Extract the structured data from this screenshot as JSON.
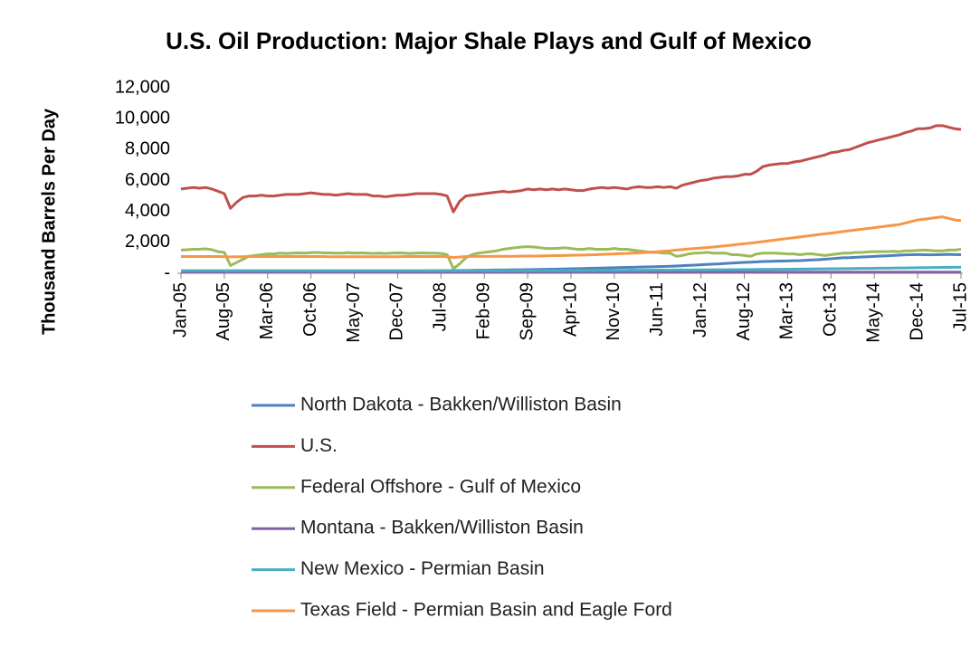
{
  "chart_data": {
    "type": "line",
    "title": "U.S. Oil Production: Major Shale Plays and Gulf of Mexico",
    "y_label": "Thousand Barrels Per Day",
    "categories": [
      "Jan-05",
      null,
      null,
      null,
      null,
      null,
      null,
      "Aug-05",
      null,
      null,
      null,
      null,
      null,
      null,
      "Mar-06",
      null,
      null,
      null,
      null,
      null,
      null,
      "Oct-06",
      null,
      null,
      null,
      null,
      null,
      null,
      "May-07",
      null,
      null,
      null,
      null,
      null,
      null,
      "Dec-07",
      null,
      null,
      null,
      null,
      null,
      null,
      "Jul-08",
      null,
      null,
      null,
      null,
      null,
      null,
      "Feb-09",
      null,
      null,
      null,
      null,
      null,
      null,
      "Sep-09",
      null,
      null,
      null,
      null,
      null,
      null,
      "Apr-10",
      null,
      null,
      null,
      null,
      null,
      null,
      "Nov-10",
      null,
      null,
      null,
      null,
      null,
      null,
      "Jun-11",
      null,
      null,
      null,
      null,
      null,
      null,
      "Jan-12",
      null,
      null,
      null,
      null,
      null,
      null,
      "Aug-12",
      null,
      null,
      null,
      null,
      null,
      null,
      "Mar-13",
      null,
      null,
      null,
      null,
      null,
      null,
      "Oct-13",
      null,
      null,
      null,
      null,
      null,
      null,
      "May-14",
      null,
      null,
      null,
      null,
      null,
      null,
      "Dec-14",
      null,
      null,
      null,
      null,
      null,
      null,
      "Jul-15"
    ],
    "ylim": [
      0,
      12000
    ],
    "yticks": [
      {
        "value": 0,
        "label": "-"
      },
      {
        "value": 2000,
        "label": "2,000"
      },
      {
        "value": 4000,
        "label": "4,000"
      },
      {
        "value": 6000,
        "label": "6,000"
      },
      {
        "value": 8000,
        "label": "8,000"
      },
      {
        "value": 10000,
        "label": "10,000"
      },
      {
        "value": 12000,
        "label": "12,000"
      }
    ],
    "grid": false,
    "legend": "bottom",
    "series": [
      {
        "name": "North Dakota - Bakken/Williston Basin",
        "color": "#4f81bd",
        "values": [
          100,
          100,
          100,
          100,
          100,
          100,
          100,
          100,
          100,
          100,
          100,
          105,
          105,
          105,
          105,
          105,
          105,
          110,
          110,
          110,
          110,
          115,
          115,
          115,
          115,
          115,
          120,
          120,
          120,
          120,
          125,
          125,
          125,
          125,
          130,
          130,
          135,
          140,
          145,
          150,
          155,
          160,
          165,
          170,
          175,
          180,
          185,
          190,
          195,
          200,
          205,
          210,
          215,
          220,
          225,
          230,
          235,
          240,
          250,
          255,
          260,
          270,
          280,
          290,
          300,
          310,
          320,
          330,
          340,
          350,
          360,
          370,
          380,
          390,
          400,
          410,
          420,
          430,
          440,
          450,
          470,
          490,
          510,
          530,
          550,
          570,
          590,
          610,
          640,
          660,
          680,
          700,
          720,
          740,
          760,
          770,
          780,
          790,
          800,
          810,
          820,
          840,
          860,
          880,
          910,
          940,
          970,
          1000,
          1010,
          1030,
          1050,
          1070,
          1090,
          1110,
          1130,
          1150,
          1170,
          1190,
          1200,
          1210,
          1200,
          1190,
          1200,
          1210,
          1220,
          1210,
          1200
        ]
      },
      {
        "name": "U.S.",
        "color": "#c0504d",
        "values": [
          5450,
          5500,
          5550,
          5500,
          5550,
          5450,
          5300,
          5150,
          4200,
          4600,
          4900,
          5000,
          5000,
          5050,
          5000,
          5000,
          5050,
          5100,
          5100,
          5100,
          5150,
          5200,
          5150,
          5100,
          5100,
          5050,
          5100,
          5150,
          5100,
          5100,
          5100,
          5000,
          5000,
          4950,
          5000,
          5050,
          5050,
          5100,
          5150,
          5150,
          5150,
          5150,
          5100,
          5000,
          3970,
          4650,
          5000,
          5050,
          5100,
          5150,
          5200,
          5250,
          5300,
          5250,
          5300,
          5350,
          5450,
          5400,
          5450,
          5400,
          5450,
          5400,
          5450,
          5400,
          5350,
          5350,
          5450,
          5500,
          5550,
          5500,
          5550,
          5500,
          5450,
          5550,
          5600,
          5550,
          5550,
          5600,
          5550,
          5600,
          5500,
          5700,
          5800,
          5900,
          6000,
          6050,
          6150,
          6200,
          6250,
          6250,
          6300,
          6400,
          6400,
          6600,
          6900,
          7000,
          7050,
          7100,
          7100,
          7200,
          7250,
          7350,
          7450,
          7550,
          7650,
          7800,
          7850,
          7950,
          8000,
          8150,
          8300,
          8450,
          8550,
          8650,
          8750,
          8850,
          8950,
          9100,
          9200,
          9350,
          9350,
          9400,
          9550,
          9550,
          9450,
          9350,
          9300
        ]
      },
      {
        "name": "Federal Offshore - Gulf of Mexico",
        "color": "#9bbb59",
        "values": [
          1500,
          1520,
          1550,
          1560,
          1580,
          1520,
          1400,
          1350,
          500,
          700,
          900,
          1100,
          1150,
          1200,
          1250,
          1250,
          1300,
          1280,
          1300,
          1320,
          1300,
          1330,
          1350,
          1320,
          1320,
          1300,
          1300,
          1330,
          1300,
          1320,
          1300,
          1280,
          1300,
          1280,
          1300,
          1320,
          1300,
          1280,
          1300,
          1320,
          1300,
          1300,
          1280,
          1200,
          300,
          600,
          1000,
          1200,
          1300,
          1350,
          1400,
          1450,
          1550,
          1600,
          1650,
          1700,
          1720,
          1700,
          1650,
          1600,
          1600,
          1620,
          1650,
          1600,
          1550,
          1550,
          1600,
          1550,
          1550,
          1550,
          1600,
          1550,
          1550,
          1500,
          1450,
          1400,
          1350,
          1350,
          1300,
          1300,
          1100,
          1150,
          1250,
          1300,
          1320,
          1350,
          1300,
          1300,
          1300,
          1200,
          1200,
          1150,
          1100,
          1250,
          1300,
          1300,
          1300,
          1280,
          1250,
          1250,
          1200,
          1250,
          1250,
          1200,
          1150,
          1200,
          1250,
          1300,
          1300,
          1350,
          1350,
          1380,
          1400,
          1400,
          1400,
          1420,
          1400,
          1450,
          1450,
          1480,
          1500,
          1480,
          1450,
          1450,
          1500,
          1500,
          1550
        ]
      },
      {
        "name": "Montana - Bakken/Williston Basin",
        "color": "#8064a2",
        "values": [
          90,
          90,
          90,
          90,
          90,
          90,
          90,
          90,
          90,
          90,
          90,
          90,
          90,
          90,
          90,
          90,
          90,
          90,
          90,
          90,
          90,
          90,
          90,
          90,
          85,
          85,
          85,
          85,
          85,
          85,
          85,
          85,
          85,
          85,
          85,
          85,
          80,
          80,
          80,
          80,
          80,
          80,
          80,
          80,
          80,
          80,
          80,
          80,
          75,
          75,
          75,
          75,
          75,
          75,
          75,
          75,
          75,
          75,
          75,
          75,
          70,
          70,
          70,
          70,
          70,
          70,
          70,
          70,
          70,
          70,
          70,
          70,
          70,
          70,
          70,
          70,
          70,
          70,
          70,
          70,
          70,
          70,
          70,
          70,
          70,
          70,
          70,
          70,
          70,
          70,
          70,
          70,
          70,
          70,
          70,
          70,
          70,
          70,
          70,
          70,
          70,
          70,
          70,
          70,
          70,
          70,
          70,
          70,
          75,
          75,
          75,
          75,
          75,
          75,
          75,
          75,
          75,
          75,
          75,
          75,
          75,
          75,
          75,
          75,
          75,
          75,
          75
        ]
      },
      {
        "name": "New Mexico - Permian Basin",
        "color": "#4bacc6",
        "values": [
          165,
          165,
          165,
          165,
          165,
          165,
          165,
          165,
          165,
          165,
          165,
          165,
          165,
          165,
          165,
          165,
          165,
          165,
          165,
          165,
          165,
          165,
          165,
          165,
          165,
          165,
          165,
          165,
          165,
          165,
          165,
          165,
          165,
          165,
          165,
          165,
          165,
          165,
          165,
          165,
          165,
          165,
          165,
          165,
          165,
          165,
          165,
          165,
          165,
          165,
          165,
          165,
          165,
          165,
          165,
          165,
          165,
          165,
          165,
          165,
          170,
          172,
          174,
          176,
          178,
          180,
          182,
          184,
          186,
          188,
          190,
          192,
          194,
          196,
          198,
          200,
          202,
          204,
          206,
          208,
          210,
          212,
          214,
          216,
          218,
          221,
          224,
          227,
          230,
          233,
          236,
          239,
          242,
          245,
          248,
          251,
          254,
          258,
          262,
          266,
          270,
          274,
          278,
          282,
          286,
          290,
          294,
          298,
          302,
          307,
          312,
          317,
          322,
          327,
          332,
          337,
          342,
          347,
          352,
          357,
          362,
          367,
          372,
          377,
          382,
          387,
          390
        ]
      },
      {
        "name": "Texas Field - Permian Basin and Eagle Ford",
        "color": "#f79646",
        "values": [
          1080,
          1080,
          1080,
          1080,
          1080,
          1080,
          1080,
          1070,
          1060,
          1070,
          1070,
          1080,
          1080,
          1080,
          1080,
          1080,
          1080,
          1080,
          1080,
          1080,
          1080,
          1080,
          1080,
          1080,
          1070,
          1070,
          1070,
          1070,
          1070,
          1070,
          1070,
          1070,
          1070,
          1070,
          1070,
          1070,
          1080,
          1080,
          1080,
          1080,
          1080,
          1080,
          1080,
          1070,
          1020,
          1050,
          1080,
          1090,
          1090,
          1090,
          1090,
          1100,
          1100,
          1100,
          1100,
          1110,
          1110,
          1110,
          1120,
          1130,
          1140,
          1140,
          1150,
          1160,
          1170,
          1180,
          1190,
          1200,
          1220,
          1240,
          1250,
          1270,
          1280,
          1300,
          1320,
          1340,
          1370,
          1400,
          1430,
          1460,
          1500,
          1530,
          1570,
          1600,
          1630,
          1660,
          1700,
          1740,
          1780,
          1820,
          1870,
          1910,
          1950,
          2000,
          2050,
          2100,
          2150,
          2200,
          2250,
          2300,
          2350,
          2400,
          2450,
          2500,
          2550,
          2600,
          2650,
          2700,
          2750,
          2800,
          2850,
          2900,
          2950,
          3000,
          3050,
          3100,
          3150,
          3250,
          3350,
          3450,
          3500,
          3550,
          3600,
          3650,
          3550,
          3450,
          3400
        ]
      }
    ]
  }
}
